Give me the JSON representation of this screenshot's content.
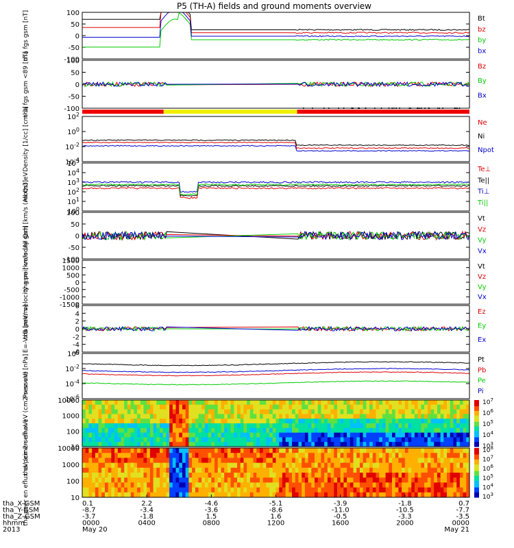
{
  "title": "P5 (TH-A) fields and ground moments overview",
  "colors": {
    "black": "#000000",
    "red": "#dd0000",
    "green": "#00cc00",
    "blue": "#0000cc",
    "yellow": "#f0f000",
    "bar_red": "#ee0000"
  },
  "chart_data": [
    {
      "id": "fgs",
      "type": "line",
      "ylabel": "tha fgs gsm [nT]",
      "yticks": [
        "100",
        "50",
        "0",
        "-50",
        "-100"
      ],
      "legend": [
        {
          "label": "Bt",
          "color": "black"
        },
        {
          "label": "bz",
          "color": "red"
        },
        {
          "label": "by",
          "color": "green"
        },
        {
          "label": "bx",
          "color": "blue"
        }
      ]
    },
    {
      "id": "fgs_sm",
      "type": "line",
      "ylabel": "tha fgs gsm <89 [nT]",
      "yticks": [
        "100",
        "50",
        "0",
        "-50",
        "-100"
      ],
      "legend": [
        {
          "label": "Bz",
          "color": "red"
        },
        {
          "label": "By",
          "color": "green"
        },
        {
          "label": "Bx",
          "color": "blue"
        }
      ]
    },
    {
      "id": "density",
      "type": "line",
      "ylabel": "Density [1/cc] [cm-3]",
      "yticks": [
        "10^2",
        "10^0",
        "10^-2",
        "10^-4"
      ],
      "legend": [
        {
          "label": "Ne",
          "color": "red"
        },
        {
          "label": "Ni",
          "color": "black"
        },
        {
          "label": "Npot",
          "color": "blue"
        }
      ]
    },
    {
      "id": "temp",
      "type": "line",
      "ylabel": "mom3 eV",
      "yticks": [
        "10^5",
        "10^4",
        "10^3",
        "10^2",
        "10^1",
        "10^0"
      ],
      "legend": [
        {
          "label": "Te⊥",
          "color": "red"
        },
        {
          "label": "Te||",
          "color": "black"
        },
        {
          "label": "Ti⊥",
          "color": "blue"
        },
        {
          "label": "Ti||",
          "color": "green"
        }
      ]
    },
    {
      "id": "peir_vel",
      "type": "line",
      "ylabel": "tha peir velocity gsm [km/s (All Qs)]",
      "yticks": [
        "100",
        "50",
        "0",
        "-50",
        "-100"
      ],
      "legend": [
        {
          "label": "Vt",
          "color": "black"
        },
        {
          "label": "Vz",
          "color": "red"
        },
        {
          "label": "Vy",
          "color": "green"
        },
        {
          "label": "Vx",
          "color": "blue"
        }
      ]
    },
    {
      "id": "peer_vel",
      "type": "line",
      "ylabel": "tha peer velocity gsm [km/s (All Qs)]",
      "yticks": [
        "1500",
        "1000",
        "500",
        "0",
        "-500",
        "-1000",
        "-1500"
      ],
      "legend": [
        {
          "label": "Vt",
          "color": "black"
        },
        {
          "label": "Vz",
          "color": "red"
        },
        {
          "label": "Vy",
          "color": "green"
        },
        {
          "label": "Vx",
          "color": "blue"
        }
      ]
    },
    {
      "id": "efield",
      "type": "line",
      "ylabel": "E=-VxB [mV/m]",
      "yticks": [
        "6",
        "4",
        "2",
        "0",
        "-2",
        "-4",
        "-6"
      ],
      "legend": [
        {
          "label": "Ez",
          "color": "red"
        },
        {
          "label": "Ey",
          "color": "green"
        },
        {
          "label": "Ex",
          "color": "blue"
        }
      ]
    },
    {
      "id": "pressure",
      "type": "line",
      "ylabel": "Pressure [nPa]",
      "yticks": [
        "10^0",
        "10^-2",
        "10^-4",
        "10^-6"
      ],
      "legend": [
        {
          "label": "Pt",
          "color": "black"
        },
        {
          "label": "Pb",
          "color": "red"
        },
        {
          "label": "Pe",
          "color": "green"
        },
        {
          "label": "Pi",
          "color": "blue"
        }
      ]
    },
    {
      "id": "peir_spec",
      "type": "heatmap",
      "ylabel": "tha peir en eflux eV (cm2-s-sr-eV)",
      "yticks": [
        "10000",
        "1000",
        "100",
        "10"
      ],
      "colorbar": [
        "10^7",
        "10^6",
        "10^5",
        "10^4",
        "10^3"
      ]
    },
    {
      "id": "peer_spec",
      "type": "heatmap",
      "ylabel": "tha peer en eflux eV (cm2-s-sr-eV)",
      "yticks": [
        "10000",
        "1000",
        "100",
        "10"
      ],
      "colorbar": [
        "10^8",
        "10^7",
        "10^6",
        "10^5",
        "10^4",
        "10^3"
      ]
    }
  ],
  "xaxis": {
    "row_labels": [
      "tha_X-GSM",
      "tha_Y-GSM",
      "tha_Z-GSM",
      "hhmm",
      "2013"
    ],
    "columns": [
      {
        "x": "0.1",
        "y": "-8.7",
        "z": "-3.7",
        "t": "0000",
        "d": "May 20"
      },
      {
        "x": "2.2",
        "y": "-3.4",
        "z": "-1.8",
        "t": "0400",
        "d": ""
      },
      {
        "x": "-4.6",
        "y": "-3.6",
        "z": "1.5",
        "t": "0800",
        "d": ""
      },
      {
        "x": "-5.1",
        "y": "-8.6",
        "z": "1.6",
        "t": "1200",
        "d": ""
      },
      {
        "x": "-3.9",
        "y": "-11.0",
        "z": "-0.5",
        "t": "1600",
        "d": ""
      },
      {
        "x": "-1.8",
        "y": "-10.5",
        "z": "-3.3",
        "t": "2000",
        "d": ""
      },
      {
        "x": "0.7",
        "y": "-7.7",
        "z": "-3.5",
        "t": "0000",
        "d": "May 21"
      }
    ]
  }
}
